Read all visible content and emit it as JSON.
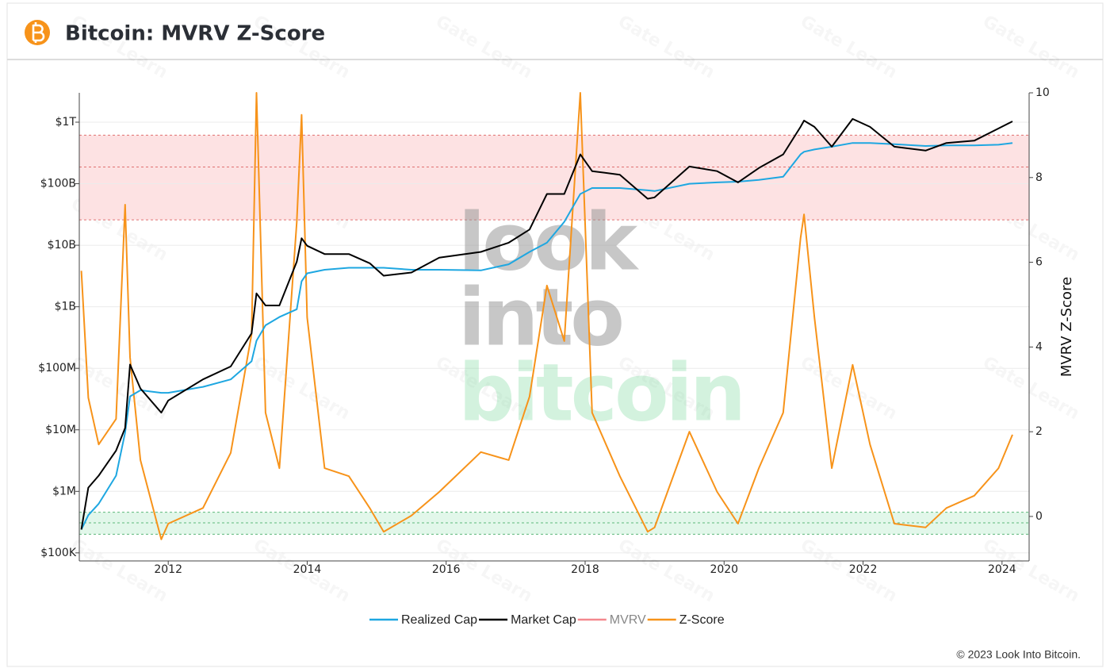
{
  "header": {
    "title": "Bitcoin: MVRV Z-Score"
  },
  "footer": "© 2023 Look Into Bitcoin.",
  "chart_data": {
    "type": "line",
    "y2_label": "MVRV Z-Score",
    "watermark": [
      "look",
      "into",
      "bitcoin"
    ],
    "credit_watermark": "Gate Learn",
    "log_y": true,
    "grid": true,
    "legend": "bottom",
    "xlim": [
      2010.72,
      2024.39
    ],
    "xticks": [
      2012,
      2014,
      2016,
      2018,
      2020,
      2022,
      2024
    ],
    "ylim": [
      74000,
      3000000000000
    ],
    "yticks": [
      {
        "value": 100000,
        "label": "$100K"
      },
      {
        "value": 1000000,
        "label": "$1M"
      },
      {
        "value": 10000000,
        "label": "$10M"
      },
      {
        "value": 100000000,
        "label": "$100M"
      },
      {
        "value": 1000000000,
        "label": "$1B"
      },
      {
        "value": 10000000000,
        "label": "$10B"
      },
      {
        "value": 100000000000,
        "label": "$100B"
      },
      {
        "value": 1000000000000,
        "label": "$1T"
      }
    ],
    "y2lim": [
      -1.05,
      10
    ],
    "y2ticks": [
      0,
      2,
      4,
      6,
      8,
      10
    ],
    "zones": [
      {
        "axis": "y2",
        "levels": [
          7,
          8.25,
          9
        ],
        "fill": "#fde2e3",
        "stroke": "#e07070"
      },
      {
        "axis": "y2",
        "levels": [
          -0.42,
          -0.15,
          0.1
        ],
        "fill": "#e2f7ea",
        "stroke": "#5cb87a"
      }
    ],
    "x": [
      2010.75,
      2010.85,
      2011.0,
      2011.25,
      2011.38,
      2011.45,
      2011.6,
      2011.9,
      2012.0,
      2012.5,
      2012.9,
      2013.2,
      2013.27,
      2013.4,
      2013.6,
      2013.85,
      2013.92,
      2014.0,
      2014.25,
      2014.6,
      2014.9,
      2015.1,
      2015.5,
      2015.9,
      2016.5,
      2016.9,
      2017.2,
      2017.45,
      2017.7,
      2017.93,
      2018.1,
      2018.5,
      2018.9,
      2019.0,
      2019.5,
      2019.9,
      2020.2,
      2020.5,
      2020.85,
      2021.1,
      2021.15,
      2021.3,
      2021.55,
      2021.85,
      2022.1,
      2022.45,
      2022.9,
      2023.2,
      2023.6,
      2023.95,
      2024.15
    ],
    "series": [
      {
        "name": "Z-Score",
        "color": "#f7931a",
        "axis": "y2",
        "values": [
          5.8,
          2.8,
          1.7,
          2.3,
          7.36,
          3.76,
          1.33,
          -0.54,
          -0.17,
          0.2,
          1.5,
          4.3,
          10,
          2.45,
          1.14,
          6.95,
          9.48,
          4.7,
          1.14,
          0.95,
          0.2,
          -0.36,
          0.02,
          0.58,
          1.52,
          1.33,
          2.83,
          5.45,
          4.14,
          10,
          2.45,
          0.95,
          -0.36,
          -0.26,
          2.0,
          0.58,
          -0.17,
          1.14,
          2.45,
          6.57,
          7.13,
          4.7,
          1.14,
          3.58,
          1.7,
          -0.17,
          -0.26,
          0.2,
          0.49,
          1.14,
          1.93
        ]
      },
      {
        "name": "Realized Cap",
        "color": "#1ea7e1",
        "values": [
          240000,
          410000,
          630000,
          1800000,
          9000000,
          35000000,
          44000000,
          40000000,
          40000000,
          50000000,
          66000000,
          130000000,
          280000000,
          500000000,
          680000000,
          910000000,
          2600000000,
          3500000000,
          4000000000,
          4300000000,
          4300000000,
          4300000000,
          4000000000,
          4000000000,
          3900000000,
          4900000000,
          7800000000,
          11000000000,
          24000000000,
          68000000000,
          85000000000,
          85000000000,
          78000000000,
          76000000000,
          100000000000,
          105000000000,
          108000000000,
          115000000000,
          130000000000,
          300000000000,
          330000000000,
          360000000000,
          400000000000,
          460000000000,
          460000000000,
          440000000000,
          410000000000,
          420000000000,
          420000000000,
          430000000000,
          460000000000
        ]
      },
      {
        "name": "Market Cap",
        "color": "#000000",
        "values": [
          240000,
          1150000,
          1800000,
          4600000,
          10700000,
          115000000,
          47000000,
          19000000,
          30000000,
          66000000,
          107000000,
          370000000,
          1650000000,
          1050000000,
          1050000000,
          5400000000,
          13000000000,
          9800000000,
          7200000000,
          7200000000,
          5100000000,
          3200000000,
          3600000000,
          6300000000,
          7800000000,
          11000000000,
          18000000000,
          68000000000,
          68000000000,
          300000000000,
          160000000000,
          140000000000,
          57000000000,
          60000000000,
          190000000000,
          160000000000,
          105000000000,
          180000000000,
          300000000000,
          840000000000,
          1060000000000,
          840000000000,
          400000000000,
          1130000000000,
          840000000000,
          400000000000,
          345000000000,
          460000000000,
          500000000000,
          790000000000,
          1030000000000
        ]
      },
      {
        "name": "MVRV",
        "color": "#f4888e",
        "hidden": true
      }
    ]
  }
}
